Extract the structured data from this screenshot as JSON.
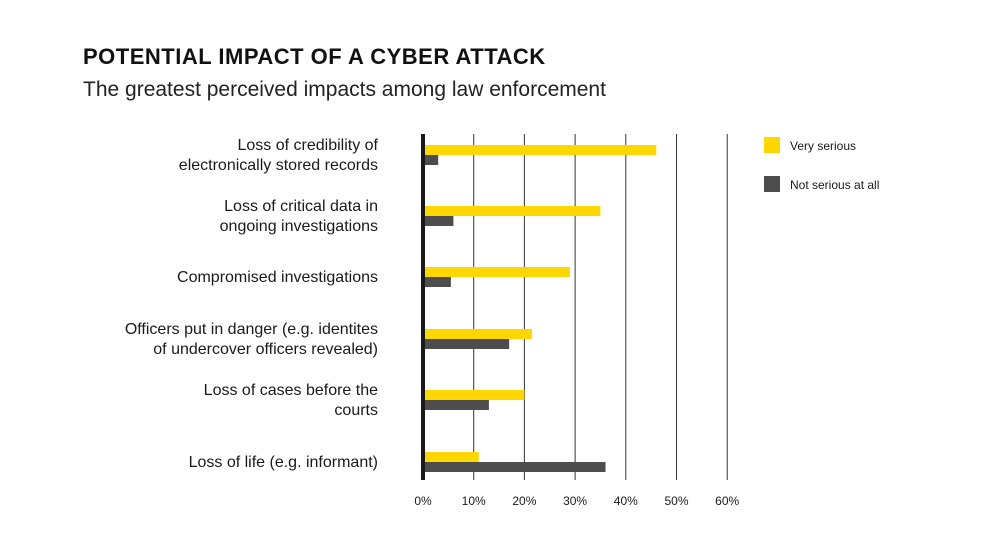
{
  "header": {
    "title": "POTENTIAL IMPACT OF A CYBER ATTACK",
    "subtitle": "The greatest perceived impacts among law enforcement"
  },
  "colors": {
    "very_serious": "#FFD700",
    "not_serious": "#4d4d4d",
    "axis": "#1a1a1a",
    "grid": "#333333"
  },
  "chart_data": {
    "type": "bar",
    "orientation": "horizontal",
    "title": "POTENTIAL IMPACT OF A CYBER ATTACK",
    "subtitle": "The greatest perceived impacts among law enforcement",
    "categories": [
      [
        "Loss of credibility of",
        "electronically stored records"
      ],
      [
        "Loss of critical data in",
        "ongoing investigations"
      ],
      [
        "Compromised investigations"
      ],
      [
        "Officers put in danger (e.g. identites",
        "of undercover officers revealed)"
      ],
      [
        "Loss of cases before the",
        "courts"
      ],
      [
        "Loss of life (e.g. informant)"
      ]
    ],
    "series": [
      {
        "name": "Very serious",
        "values": [
          46,
          35,
          29,
          21.5,
          20,
          11
        ]
      },
      {
        "name": "Not serious at all",
        "values": [
          3,
          6,
          5.5,
          17,
          13,
          36
        ]
      }
    ],
    "xlim": [
      0,
      60
    ],
    "ticks": [
      "0%",
      "10%",
      "20%",
      "30%",
      "40%",
      "50%",
      "60%"
    ],
    "grid": true,
    "legend_position": "top-right"
  }
}
